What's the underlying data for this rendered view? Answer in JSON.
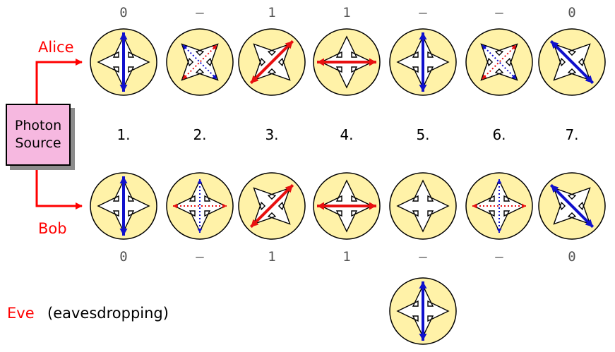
{
  "alice_label": "Alice",
  "bob_label": "Bob",
  "eve_label": "Eve",
  "eve_note": "(eavesdropping)",
  "source": {
    "line1": "Photon",
    "line2": "Source"
  },
  "indices": [
    "1.",
    "2.",
    "3.",
    "4.",
    "5.",
    "6.",
    "7."
  ],
  "alice_bits": [
    "0",
    "–",
    "1",
    "1",
    "–",
    "–",
    "0"
  ],
  "bob_bits": [
    "0",
    "–",
    "1",
    "1",
    "–",
    "–",
    "0"
  ],
  "alice_filters": [
    {
      "basis": "rectilinear",
      "polarization": "vertical",
      "mode": "solid"
    },
    {
      "basis": "diagonal",
      "polarization": "both",
      "mode": "dotted"
    },
    {
      "basis": "diagonal",
      "polarization": "diagonal-up",
      "mode": "solid"
    },
    {
      "basis": "rectilinear",
      "polarization": "horizontal",
      "mode": "solid"
    },
    {
      "basis": "rectilinear",
      "polarization": "vertical",
      "mode": "solid"
    },
    {
      "basis": "diagonal",
      "polarization": "both",
      "mode": "dotted"
    },
    {
      "basis": "diagonal",
      "polarization": "diagonal-down",
      "mode": "solid"
    }
  ],
  "bob_filters": [
    {
      "basis": "rectilinear",
      "polarization": "vertical",
      "mode": "solid"
    },
    {
      "basis": "rectilinear",
      "polarization": "both",
      "mode": "dotted"
    },
    {
      "basis": "diagonal",
      "polarization": "diagonal-up",
      "mode": "solid"
    },
    {
      "basis": "rectilinear",
      "polarization": "horizontal",
      "mode": "solid"
    },
    {
      "basis": "rectilinear",
      "polarization": "none",
      "mode": "none"
    },
    {
      "basis": "rectilinear",
      "polarization": "both",
      "mode": "dotted"
    },
    {
      "basis": "diagonal",
      "polarization": "diagonal-down",
      "mode": "solid"
    }
  ],
  "eve_filter": {
    "basis": "rectilinear",
    "polarization": "vertical",
    "mode": "solid"
  },
  "colors": {
    "vertical": "#1010cc",
    "diagonal-down": "#1010cc",
    "horizontal": "#e81010",
    "diagonal-up": "#e81010",
    "disc_fill": "#fff2a8",
    "accent": "#ff0000",
    "source_fill": "#f6b8e0"
  }
}
